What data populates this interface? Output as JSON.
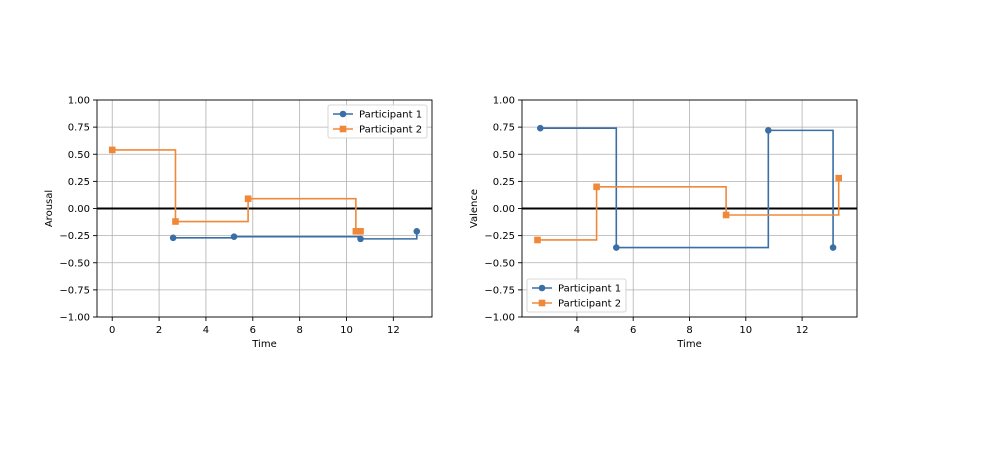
{
  "chart_data": [
    {
      "type": "line",
      "step": "post",
      "xlabel": "Time",
      "ylabel": "Arousal",
      "xlim": [
        -0.65,
        13.65
      ],
      "ylim": [
        -1.0,
        1.0
      ],
      "xticks": [
        0,
        2,
        4,
        6,
        8,
        10,
        12
      ],
      "yticks": [
        -1.0,
        -0.75,
        -0.5,
        -0.25,
        0.0,
        0.25,
        0.5,
        0.75,
        1.0
      ],
      "ytick_labels": [
        "−1.00",
        "−0.75",
        "−0.50",
        "−0.25",
        "0.00",
        "0.25",
        "0.50",
        "0.75",
        "1.00"
      ],
      "grid": true,
      "zero_line": true,
      "legend": "upper right",
      "series": [
        {
          "name": "Participant 1",
          "color": "#3a6ea5",
          "marker": "circle",
          "x": [
            2.6,
            5.2,
            10.6,
            13.0
          ],
          "y": [
            -0.27,
            -0.26,
            -0.28,
            -0.21
          ]
        },
        {
          "name": "Participant 2",
          "color": "#f0883a",
          "marker": "square",
          "x": [
            0.0,
            2.7,
            5.8,
            10.4,
            10.6
          ],
          "y": [
            0.54,
            -0.12,
            0.09,
            -0.21,
            -0.21
          ]
        }
      ]
    },
    {
      "type": "line",
      "step": "post",
      "xlabel": "Time",
      "ylabel": "Valence",
      "xlim": [
        2.05,
        13.95
      ],
      "ylim": [
        -1.0,
        1.0
      ],
      "xticks": [
        4,
        6,
        8,
        10,
        12
      ],
      "yticks": [
        -1.0,
        -0.75,
        -0.5,
        -0.25,
        0.0,
        0.25,
        0.5,
        0.75,
        1.0
      ],
      "ytick_labels": [
        "−1.00",
        "−0.75",
        "−0.50",
        "−0.25",
        "0.00",
        "0.25",
        "0.50",
        "0.75",
        "1.00"
      ],
      "grid": true,
      "zero_line": true,
      "legend": "lower left",
      "series": [
        {
          "name": "Participant 1",
          "color": "#3a6ea5",
          "marker": "circle",
          "x": [
            2.7,
            5.4,
            10.8,
            13.1
          ],
          "y": [
            0.74,
            -0.36,
            0.72,
            -0.36
          ]
        },
        {
          "name": "Participant 2",
          "color": "#f0883a",
          "marker": "square",
          "x": [
            2.6,
            4.7,
            9.3,
            13.3
          ],
          "y": [
            -0.29,
            0.2,
            -0.06,
            0.28
          ]
        }
      ]
    }
  ]
}
